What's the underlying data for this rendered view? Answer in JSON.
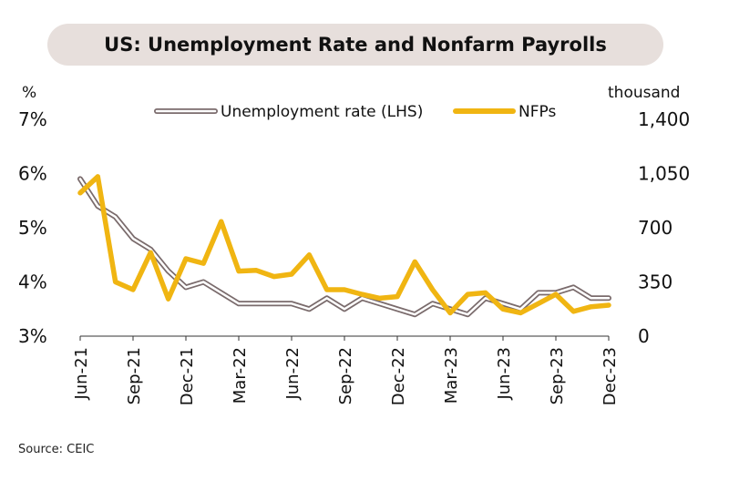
{
  "chart_data": {
    "type": "line",
    "title": "US: Unemployment Rate and Nonfarm Payrolls",
    "left_axis_unit": "%",
    "right_axis_unit": "thousand",
    "left_ticks": [
      "3%",
      "4%",
      "5%",
      "6%",
      "7%"
    ],
    "left_ylim": [
      3,
      7
    ],
    "right_ticks": [
      "0",
      "350",
      "700",
      "1,050",
      "1,400"
    ],
    "right_ylim": [
      0,
      1400
    ],
    "x_tick_labels": [
      "Jun-21",
      "Sep-21",
      "Dec-21",
      "Mar-22",
      "Jun-22",
      "Sep-22",
      "Dec-22",
      "Mar-23",
      "Jun-23",
      "Sep-23",
      "Dec-23"
    ],
    "legend": [
      "Unemployment rate (LHS)",
      "NFPs"
    ],
    "legend_position": "top",
    "colors": {
      "unemployment_outline": "#7a6b6c",
      "unemployment_fill": "#ffffff",
      "nfp": "#f0b512"
    },
    "x": [
      "Jun-21",
      "Jul-21",
      "Aug-21",
      "Sep-21",
      "Oct-21",
      "Nov-21",
      "Dec-21",
      "Jan-22",
      "Feb-22",
      "Mar-22",
      "Apr-22",
      "May-22",
      "Jun-22",
      "Jul-22",
      "Aug-22",
      "Sep-22",
      "Oct-22",
      "Nov-22",
      "Dec-22",
      "Jan-23",
      "Feb-23",
      "Mar-23",
      "Apr-23",
      "May-23",
      "Jun-23",
      "Jul-23",
      "Aug-23",
      "Sep-23",
      "Oct-23",
      "Nov-23",
      "Dec-23"
    ],
    "series": [
      {
        "name": "Unemployment rate (LHS)",
        "axis": "left",
        "values": [
          5.9,
          5.4,
          5.2,
          4.8,
          4.6,
          4.2,
          3.9,
          4.0,
          3.8,
          3.6,
          3.6,
          3.6,
          3.6,
          3.5,
          3.7,
          3.5,
          3.7,
          3.6,
          3.5,
          3.4,
          3.6,
          3.5,
          3.4,
          3.7,
          3.6,
          3.5,
          3.8,
          3.8,
          3.9,
          3.7,
          3.7
        ]
      },
      {
        "name": "NFPs",
        "axis": "right",
        "values": [
          925,
          1030,
          350,
          300,
          540,
          240,
          500,
          470,
          740,
          420,
          425,
          385,
          400,
          525,
          300,
          300,
          270,
          245,
          255,
          480,
          300,
          150,
          270,
          280,
          175,
          150,
          210,
          270,
          160,
          190,
          200
        ]
      }
    ],
    "grid": false
  },
  "source": "Source: CEIC"
}
